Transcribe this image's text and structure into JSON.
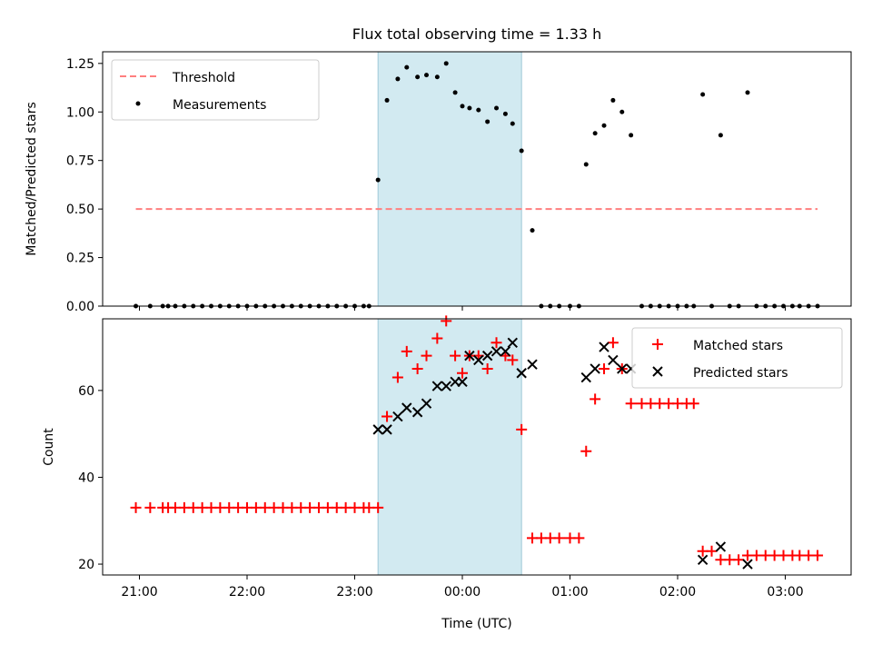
{
  "title": "Flux total observing time = 1.33 h",
  "xlabel": "Time (UTC)",
  "x_ticks": [
    "21:00",
    "22:00",
    "23:00",
    "00:00",
    "01:00",
    "02:00",
    "03:00"
  ],
  "colors": {
    "threshold": "#ff7f7f",
    "measurements": "#000000",
    "matched": "#ff0000",
    "predicted": "#000000",
    "highlight": "#add8e6"
  },
  "chart_data": [
    {
      "type": "scatter",
      "ylabel": "Matched/Predicted stars",
      "ylim": [
        0,
        1.31
      ],
      "y_ticks": [
        "0.00",
        "0.25",
        "0.50",
        "0.75",
        "1.00",
        "1.25"
      ],
      "highlight_span": {
        "start": "23:13",
        "end": "00:33"
      },
      "threshold": {
        "name": "Threshold",
        "value": 0.5,
        "start": "20:58",
        "end": "03:18"
      },
      "legend": {
        "placement": "upper-left",
        "entries": [
          "Threshold",
          "Measurements"
        ]
      },
      "series": [
        {
          "name": "Measurements",
          "points": [
            [
              "20:58",
              0
            ],
            [
              "21:06",
              0
            ],
            [
              "21:13",
              0
            ],
            [
              "21:16",
              0
            ],
            [
              "21:20",
              0
            ],
            [
              "21:25",
              0
            ],
            [
              "21:30",
              0
            ],
            [
              "21:35",
              0
            ],
            [
              "21:40",
              0
            ],
            [
              "21:45",
              0
            ],
            [
              "21:50",
              0
            ],
            [
              "21:55",
              0
            ],
            [
              "22:00",
              0
            ],
            [
              "22:05",
              0
            ],
            [
              "22:10",
              0
            ],
            [
              "22:15",
              0
            ],
            [
              "22:20",
              0
            ],
            [
              "22:25",
              0
            ],
            [
              "22:30",
              0
            ],
            [
              "22:35",
              0
            ],
            [
              "22:40",
              0
            ],
            [
              "22:45",
              0
            ],
            [
              "22:50",
              0
            ],
            [
              "22:55",
              0
            ],
            [
              "23:00",
              0
            ],
            [
              "23:05",
              0
            ],
            [
              "23:08",
              0
            ],
            [
              "23:13",
              0.65
            ],
            [
              "23:18",
              1.06
            ],
            [
              "23:24",
              1.17
            ],
            [
              "23:29",
              1.23
            ],
            [
              "23:35",
              1.18
            ],
            [
              "23:40",
              1.19
            ],
            [
              "23:46",
              1.18
            ],
            [
              "23:51",
              1.25
            ],
            [
              "23:56",
              1.1
            ],
            [
              "00:00",
              1.03
            ],
            [
              "00:04",
              1.02
            ],
            [
              "00:09",
              1.01
            ],
            [
              "00:14",
              0.95
            ],
            [
              "00:19",
              1.02
            ],
            [
              "00:24",
              0.99
            ],
            [
              "00:28",
              0.94
            ],
            [
              "00:33",
              0.8
            ],
            [
              "00:39",
              0.39
            ],
            [
              "00:44",
              0
            ],
            [
              "00:49",
              0
            ],
            [
              "00:54",
              0
            ],
            [
              "01:00",
              0
            ],
            [
              "01:05",
              0
            ],
            [
              "01:09",
              0.73
            ],
            [
              "01:14",
              0.89
            ],
            [
              "01:19",
              0.93
            ],
            [
              "01:24",
              1.06
            ],
            [
              "01:29",
              1.0
            ],
            [
              "01:34",
              0.88
            ],
            [
              "01:40",
              0
            ],
            [
              "01:45",
              0
            ],
            [
              "01:50",
              0
            ],
            [
              "01:55",
              0
            ],
            [
              "02:00",
              0
            ],
            [
              "02:05",
              0
            ],
            [
              "02:09",
              0
            ],
            [
              "02:14",
              1.09
            ],
            [
              "02:19",
              0
            ],
            [
              "02:24",
              0.88
            ],
            [
              "02:29",
              0
            ],
            [
              "02:34",
              0
            ],
            [
              "02:39",
              1.1
            ],
            [
              "02:44",
              0
            ],
            [
              "02:49",
              0
            ],
            [
              "02:54",
              0
            ],
            [
              "02:59",
              0
            ],
            [
              "03:04",
              0
            ],
            [
              "03:08",
              0
            ],
            [
              "03:13",
              0
            ],
            [
              "03:18",
              0
            ]
          ]
        }
      ]
    },
    {
      "type": "scatter",
      "ylabel": "Count",
      "ylim": [
        17.5,
        76.5
      ],
      "y_ticks": [
        "20",
        "40",
        "60"
      ],
      "highlight_span": {
        "start": "23:13",
        "end": "00:33"
      },
      "legend": {
        "placement": "upper-right",
        "entries": [
          "Matched stars",
          "Predicted stars"
        ]
      },
      "series": [
        {
          "name": "Matched stars",
          "marker": "plus",
          "points": [
            [
              "20:58",
              33
            ],
            [
              "21:06",
              33
            ],
            [
              "21:13",
              33
            ],
            [
              "21:16",
              33
            ],
            [
              "21:20",
              33
            ],
            [
              "21:25",
              33
            ],
            [
              "21:30",
              33
            ],
            [
              "21:35",
              33
            ],
            [
              "21:40",
              33
            ],
            [
              "21:45",
              33
            ],
            [
              "21:50",
              33
            ],
            [
              "21:55",
              33
            ],
            [
              "22:00",
              33
            ],
            [
              "22:05",
              33
            ],
            [
              "22:10",
              33
            ],
            [
              "22:15",
              33
            ],
            [
              "22:20",
              33
            ],
            [
              "22:25",
              33
            ],
            [
              "22:30",
              33
            ],
            [
              "22:35",
              33
            ],
            [
              "22:40",
              33
            ],
            [
              "22:45",
              33
            ],
            [
              "22:50",
              33
            ],
            [
              "22:55",
              33
            ],
            [
              "23:00",
              33
            ],
            [
              "23:05",
              33
            ],
            [
              "23:08",
              33
            ],
            [
              "23:13",
              33
            ],
            [
              "23:18",
              54
            ],
            [
              "23:24",
              63
            ],
            [
              "23:29",
              69
            ],
            [
              "23:35",
              65
            ],
            [
              "23:40",
              68
            ],
            [
              "23:46",
              72
            ],
            [
              "23:51",
              76
            ],
            [
              "23:56",
              68
            ],
            [
              "00:00",
              64
            ],
            [
              "00:04",
              68
            ],
            [
              "00:09",
              68
            ],
            [
              "00:14",
              65
            ],
            [
              "00:19",
              71
            ],
            [
              "00:24",
              68
            ],
            [
              "00:28",
              67
            ],
            [
              "00:33",
              51
            ],
            [
              "00:39",
              26
            ],
            [
              "00:44",
              26
            ],
            [
              "00:49",
              26
            ],
            [
              "00:54",
              26
            ],
            [
              "01:00",
              26
            ],
            [
              "01:05",
              26
            ],
            [
              "01:09",
              46
            ],
            [
              "01:14",
              58
            ],
            [
              "01:19",
              65
            ],
            [
              "01:24",
              71
            ],
            [
              "01:29",
              65
            ],
            [
              "01:34",
              57
            ],
            [
              "01:40",
              57
            ],
            [
              "01:45",
              57
            ],
            [
              "01:50",
              57
            ],
            [
              "01:55",
              57
            ],
            [
              "02:00",
              57
            ],
            [
              "02:05",
              57
            ],
            [
              "02:09",
              57
            ],
            [
              "02:14",
              23
            ],
            [
              "02:19",
              23
            ],
            [
              "02:24",
              21
            ],
            [
              "02:29",
              21
            ],
            [
              "02:34",
              21
            ],
            [
              "02:39",
              22
            ],
            [
              "02:44",
              22
            ],
            [
              "02:49",
              22
            ],
            [
              "02:54",
              22
            ],
            [
              "02:59",
              22
            ],
            [
              "03:04",
              22
            ],
            [
              "03:08",
              22
            ],
            [
              "03:13",
              22
            ],
            [
              "03:18",
              22
            ]
          ]
        },
        {
          "name": "Predicted stars",
          "marker": "x",
          "points": [
            [
              "23:13",
              51
            ],
            [
              "23:18",
              51
            ],
            [
              "23:24",
              54
            ],
            [
              "23:29",
              56
            ],
            [
              "23:35",
              55
            ],
            [
              "23:40",
              57
            ],
            [
              "23:46",
              61
            ],
            [
              "23:51",
              61
            ],
            [
              "23:56",
              62
            ],
            [
              "00:00",
              62
            ],
            [
              "00:04",
              68
            ],
            [
              "00:09",
              67
            ],
            [
              "00:14",
              68
            ],
            [
              "00:19",
              69
            ],
            [
              "00:24",
              69
            ],
            [
              "00:28",
              71
            ],
            [
              "00:33",
              64
            ],
            [
              "00:39",
              66
            ],
            [
              "01:09",
              63
            ],
            [
              "01:14",
              65
            ],
            [
              "01:19",
              70
            ],
            [
              "01:24",
              67
            ],
            [
              "01:29",
              65
            ],
            [
              "01:34",
              65
            ],
            [
              "02:14",
              21
            ],
            [
              "02:24",
              24
            ],
            [
              "02:39",
              20
            ]
          ]
        }
      ]
    }
  ]
}
